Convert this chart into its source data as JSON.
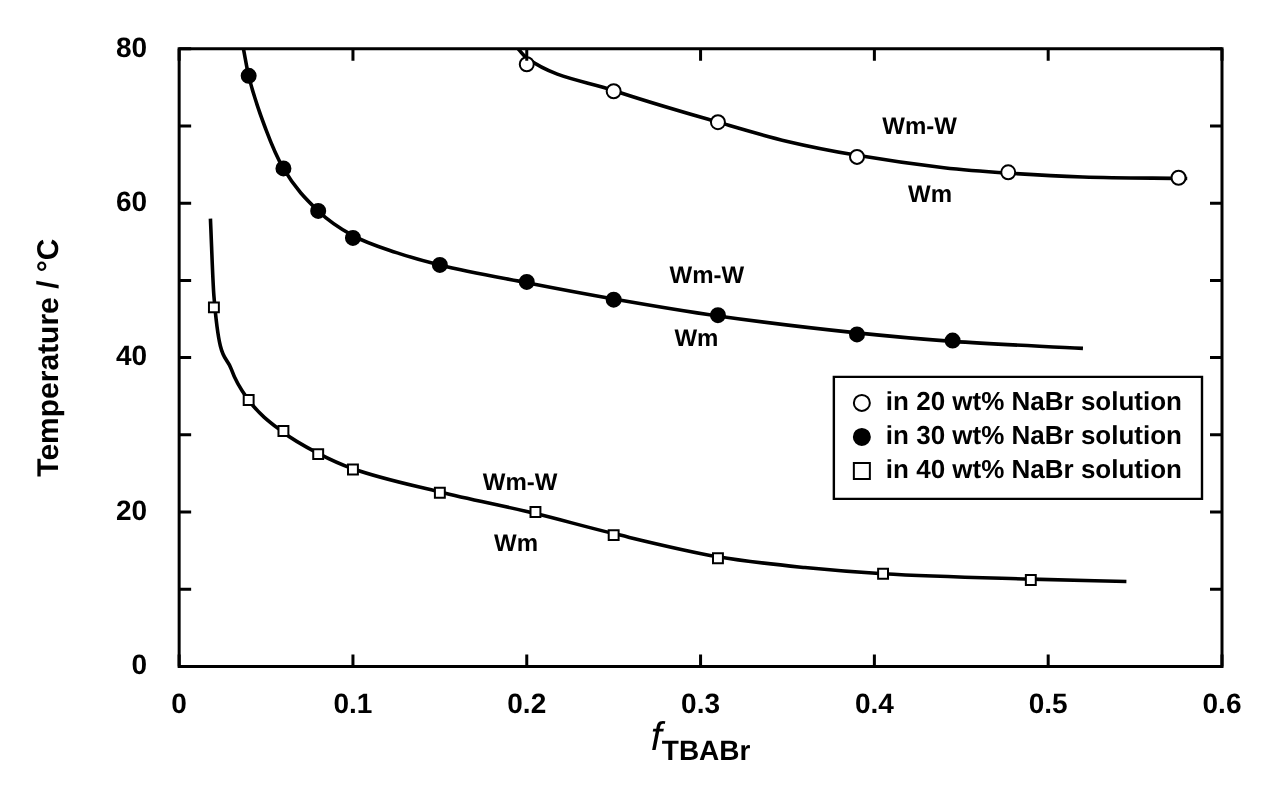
{
  "chart_data": {
    "type": "scatter",
    "xlabel": "f$_{TBABr}$",
    "ylabel": "Temperature / °C",
    "xlim": [
      0,
      0.6
    ],
    "xticks": [
      0,
      0.1,
      0.2,
      0.3,
      0.4,
      0.5,
      0.6
    ],
    "ylim": [
      0,
      80
    ],
    "yticks": [
      0,
      {
        "value": 10,
        "label": null
      },
      20,
      {
        "value": 30,
        "label": null
      },
      40,
      {
        "value": 50,
        "label": null
      },
      60,
      {
        "value": 70,
        "label": null
      },
      80
    ],
    "grid": false,
    "legend": "right",
    "series": [
      {
        "name": "in 20 wt% NaBr solution",
        "type": "scatter",
        "marker": "circle",
        "color": "#ffffff",
        "x": [
          0.2,
          0.25,
          0.31,
          0.39,
          0.477,
          0.575
        ],
        "values": [
          78,
          74.5,
          70.5,
          66,
          64,
          63.3
        ]
      },
      {
        "name": "in 30 wt% NaBr solution",
        "type": "scatter",
        "marker": "circle",
        "color": "#000000",
        "x": [
          0.04,
          0.06,
          0.08,
          0.1,
          0.15,
          0.2,
          0.25,
          0.31,
          0.39,
          0.445
        ],
        "values": [
          76.5,
          64.5,
          59,
          55.5,
          52,
          49.8,
          47.5,
          45.5,
          43,
          42.2
        ]
      },
      {
        "name": "in 40 wt% NaBr solution",
        "type": "scatter",
        "marker": "square",
        "color": "#ffffff",
        "x": [
          0.02,
          0.04,
          0.06,
          0.08,
          0.1,
          0.15,
          0.205,
          0.25,
          0.31,
          0.405,
          0.49
        ],
        "values": [
          46.5,
          34.5,
          30.5,
          27.5,
          25.5,
          22.5,
          20,
          17,
          14,
          12,
          11.2
        ]
      },
      {
        "type": "line",
        "marker": "none",
        "color": "#000000",
        "x": [
          0.195,
          0.2,
          0.25,
          0.31,
          0.35,
          0.39,
          0.44,
          0.477,
          0.52,
          0.58
        ],
        "values": [
          80,
          78.8,
          74.6,
          70.5,
          68,
          66.2,
          64.6,
          63.9,
          63.4,
          63.2
        ]
      },
      {
        "type": "line",
        "marker": "none",
        "color": "#000000",
        "x": [
          0.037,
          0.04,
          0.05,
          0.06,
          0.08,
          0.1,
          0.125,
          0.15,
          0.2,
          0.25,
          0.31,
          0.39,
          0.445,
          0.52
        ],
        "values": [
          80,
          76.5,
          69.5,
          64.5,
          59,
          55.8,
          53.6,
          52,
          49.7,
          47.6,
          45.4,
          43.2,
          42.1,
          41.2
        ]
      },
      {
        "type": "line",
        "marker": "none",
        "color": "#000000",
        "x": [
          0.018,
          0.02,
          0.03,
          0.04,
          0.06,
          0.08,
          0.1,
          0.15,
          0.205,
          0.25,
          0.31,
          0.36,
          0.405,
          0.49,
          0.545
        ],
        "values": [
          58,
          48,
          38.5,
          34.5,
          30.3,
          27.6,
          25.6,
          22.6,
          19.8,
          17.2,
          14.2,
          12.8,
          12,
          11.3,
          11
        ]
      }
    ],
    "annotations": [
      "Wm-W",
      "Wm",
      "Wm-W",
      "Wm",
      "Wm-W",
      "Wm"
    ]
  }
}
